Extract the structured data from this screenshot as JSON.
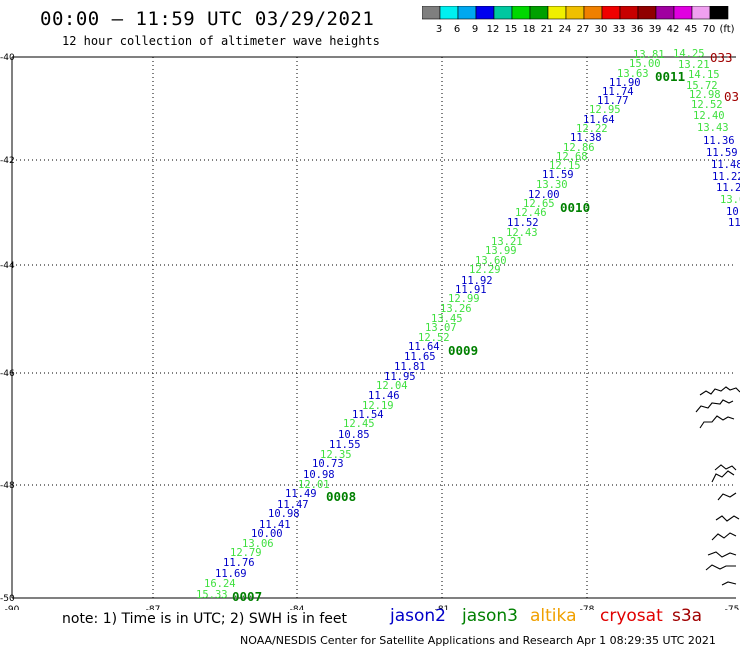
{
  "header": {
    "title": "00:00 – 11:59 UTC 03/29/2021",
    "subtitle": "12 hour collection of altimeter wave heights"
  },
  "colorbar": {
    "colors": [
      "#7f7f7f",
      "#00f0f0",
      "#00a8f0",
      "#0000f0",
      "#00c8a0",
      "#00d800",
      "#00a000",
      "#f0f000",
      "#f0c000",
      "#f08000",
      "#f00000",
      "#c80000",
      "#900000",
      "#a000a0",
      "#e000e0",
      "#f0a0f0",
      "#000000"
    ],
    "labels": [
      "3",
      "6",
      "9",
      "12",
      "15",
      "18",
      "21",
      "24",
      "27",
      "30",
      "33",
      "36",
      "39",
      "42",
      "45",
      "70",
      "(ft)"
    ]
  },
  "map": {
    "lon_labels": [
      "-90",
      "-87",
      "-84",
      "-81",
      "-78",
      "-75"
    ],
    "lat_labels": [
      "-40",
      "-42",
      "-44",
      "-46",
      "-48",
      "-50"
    ],
    "coast_color": "#000000"
  },
  "tracks": [
    {
      "name": "blue",
      "color": "#0000c8"
    },
    {
      "name": "green",
      "color": "#40e040"
    }
  ],
  "points": [
    {
      "t": "15.33",
      "c": 1
    },
    {
      "t": "16.24",
      "c": 1
    },
    {
      "t": "11.69",
      "c": 0
    },
    {
      "t": "11.76",
      "c": 0
    },
    {
      "t": "12.79",
      "c": 1
    },
    {
      "t": "13.06",
      "c": 1
    },
    {
      "t": "10.00",
      "c": 0
    },
    {
      "t": "11.41",
      "c": 0
    },
    {
      "t": "10.98",
      "c": 0
    },
    {
      "t": "11.47",
      "c": 0
    },
    {
      "t": "11.49",
      "c": 0
    },
    {
      "t": "12.01",
      "c": 1
    },
    {
      "t": "10.98",
      "c": 0
    },
    {
      "t": "10.73",
      "c": 0
    },
    {
      "t": "12.35",
      "c": 1
    },
    {
      "t": "11.55",
      "c": 0
    },
    {
      "t": "10.85",
      "c": 0
    },
    {
      "t": "12.45",
      "c": 1
    },
    {
      "t": "11.54",
      "c": 0
    },
    {
      "t": "12.19",
      "c": 1
    },
    {
      "t": "11.46",
      "c": 0
    },
    {
      "t": "12.04",
      "c": 1
    },
    {
      "t": "11.95",
      "c": 0
    },
    {
      "t": "11.81",
      "c": 0
    },
    {
      "t": "11.65",
      "c": 0
    },
    {
      "t": "11.64",
      "c": 0
    },
    {
      "t": "12.52",
      "c": 1
    },
    {
      "t": "13.07",
      "c": 1
    },
    {
      "t": "13.45",
      "c": 1
    },
    {
      "t": "13.26",
      "c": 1
    },
    {
      "t": "12.99",
      "c": 1
    },
    {
      "t": "11.91",
      "c": 0
    },
    {
      "t": "11.92",
      "c": 0
    },
    {
      "t": "12.29",
      "c": 1
    },
    {
      "t": "13.60",
      "c": 1
    },
    {
      "t": "13.99",
      "c": 1
    },
    {
      "t": "13.21",
      "c": 1
    },
    {
      "t": "12.43",
      "c": 1
    },
    {
      "t": "11.52",
      "c": 0
    },
    {
      "t": "12.46",
      "c": 1
    },
    {
      "t": "12.65",
      "c": 1
    },
    {
      "t": "12.00",
      "c": 0
    },
    {
      "t": "13.30",
      "c": 1
    },
    {
      "t": "11.59",
      "c": 0
    },
    {
      "t": "12.15",
      "c": 1
    },
    {
      "t": "12.68",
      "c": 1
    },
    {
      "t": "12.86",
      "c": 1
    },
    {
      "t": "11.38",
      "c": 0
    },
    {
      "t": "12.22",
      "c": 1
    },
    {
      "t": "11.64",
      "c": 0
    },
    {
      "t": "12.95",
      "c": 1
    },
    {
      "t": "11.77",
      "c": 0
    },
    {
      "t": "11.74",
      "c": 0
    },
    {
      "t": "11.90",
      "c": 0
    },
    {
      "t": "13.63",
      "c": 1
    },
    {
      "t": "15.00",
      "c": 1
    },
    {
      "t": "13.81",
      "c": 1
    },
    {
      "t": "14.25",
      "c": 1
    },
    {
      "t": "13.21",
      "c": 1
    },
    {
      "t": "14.15",
      "c": 1
    },
    {
      "t": "15.72",
      "c": 1
    },
    {
      "t": "12.98",
      "c": 1
    },
    {
      "t": "12.52",
      "c": 1
    },
    {
      "t": "12.40",
      "c": 1
    },
    {
      "t": "13.43",
      "c": 1
    },
    {
      "t": "11.36",
      "c": 0
    },
    {
      "t": "11.59",
      "c": 0
    },
    {
      "t": "11.48",
      "c": 0
    },
    {
      "t": "11.22",
      "c": 0
    },
    {
      "t": "11.2",
      "c": 0
    },
    {
      "t": "13.0",
      "c": 1
    },
    {
      "t": "10.",
      "c": 0
    },
    {
      "t": "11",
      "c": 0
    }
  ],
  "pass_labels": [
    "0007",
    "0008",
    "0009",
    "0010",
    "0011"
  ],
  "edge_labels": [
    "033",
    "03"
  ],
  "note": "note: 1) Time is in UTC; 2) SWH is in feet",
  "legend": [
    {
      "label": "jason2",
      "color": "#0000c8"
    },
    {
      "label": "jason3",
      "color": "#008000"
    },
    {
      "label": "altika",
      "color": "#f0a000"
    },
    {
      "label": "cryosat",
      "color": "#e00000"
    },
    {
      "label": "s3a",
      "color": "#a00000"
    }
  ],
  "footer": "NOAA/NESDIS Center for Satellite Applications and Research   Apr  1 08:29:35 UTC 2021"
}
